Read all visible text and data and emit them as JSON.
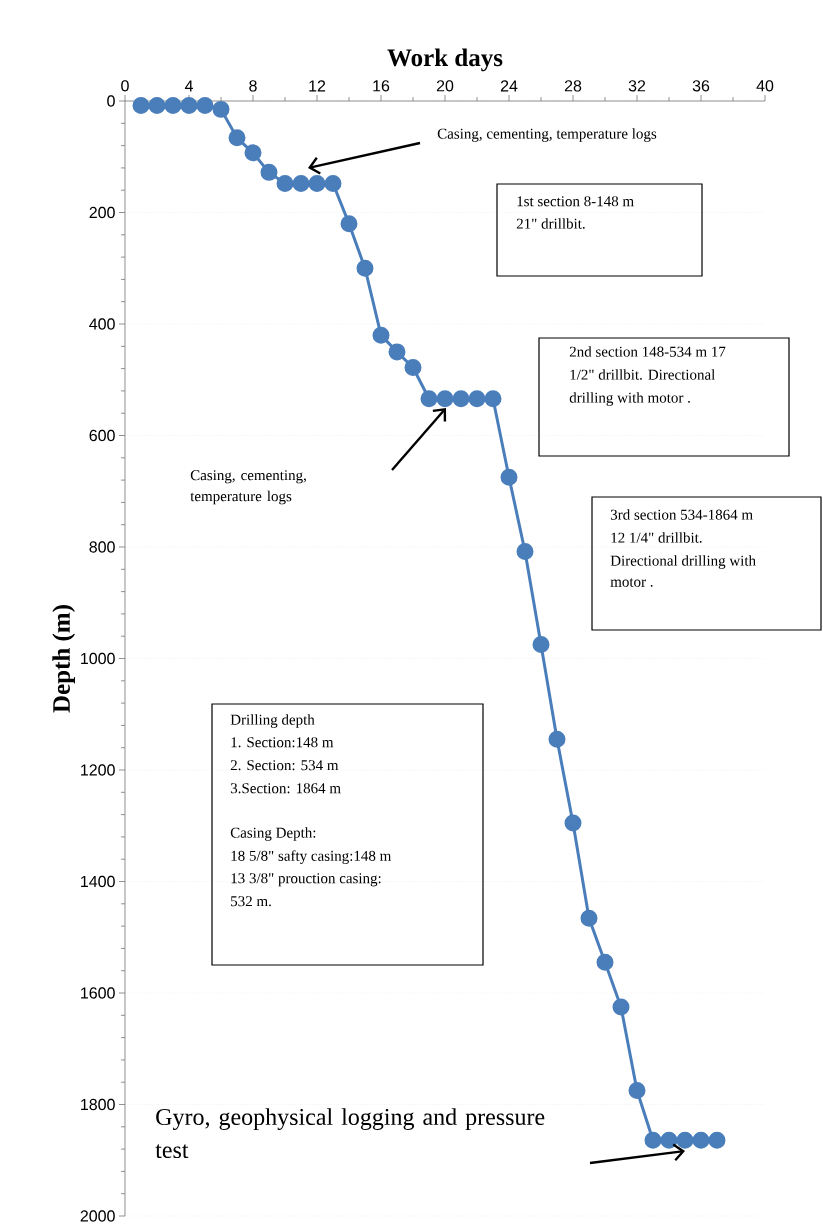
{
  "chart_data": {
    "type": "line",
    "xlabel": "Work days",
    "ylabel": "Depth (m)",
    "x": [
      1,
      2,
      3,
      4,
      5,
      6,
      7,
      8,
      9,
      10,
      11,
      12,
      13,
      14,
      15,
      16,
      17,
      18,
      19,
      20,
      21,
      22,
      23,
      24,
      25,
      26,
      27,
      28,
      29,
      30,
      31,
      32,
      33,
      34,
      35,
      36,
      37
    ],
    "values": [
      8,
      8,
      8,
      8,
      8,
      15,
      66,
      93,
      128,
      148,
      148,
      148,
      148,
      220,
      300,
      420,
      450,
      478,
      534,
      534,
      534,
      534,
      534,
      675,
      808,
      975,
      1145,
      1295,
      1466,
      1545,
      1625,
      1775,
      1864,
      1864,
      1864,
      1864,
      1864
    ],
    "color": "#4a7ebb",
    "marker": "circle",
    "line_style": "solid",
    "grid": "y",
    "xlim": [
      0,
      40
    ],
    "xticks": [
      0,
      4,
      8,
      12,
      16,
      20,
      24,
      28,
      32,
      36,
      40
    ],
    "ylim": [
      2000,
      0
    ],
    "yticks": [
      0,
      200,
      400,
      600,
      800,
      1000,
      1200,
      1400,
      1600,
      1800,
      2000
    ],
    "annotations": [
      "Casing, cementing, temperature logs",
      "1st section 8-148 m",
      "21\" drillbit.",
      "2nd section 148-534 m 17",
      "1/2\" drillbit. Directional",
      "drilling with motor .",
      "Casing, cementing, temperature logs",
      "3rd section 534-1864 m",
      "12 1/4\" drillbit.",
      "Directional  drilling with",
      "motor .",
      "Drilling depth",
      "1. Section:148 m",
      "2. Section: 534 m",
      "3.Section: 1864 m",
      "Casing Depth:",
      "18 5/8\" safty casing:148 m",
      "13 3/8\" prouction casing:",
      "532 m.",
      "Gyro, geophysical logging and pressure test"
    ]
  }
}
